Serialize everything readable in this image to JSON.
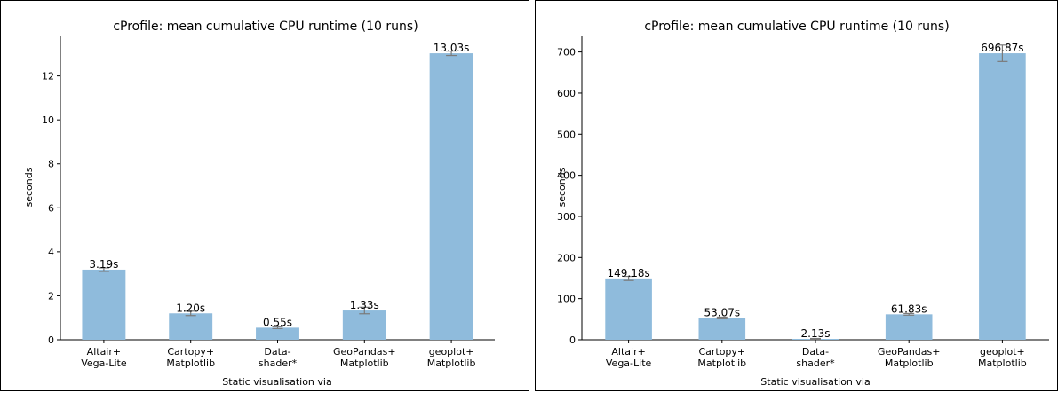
{
  "chart_data": [
    {
      "type": "bar",
      "title": "cProfile: mean cumulative CPU runtime (10 runs)",
      "xlabel": "Static visualisation via",
      "ylabel": "seconds",
      "categories": [
        [
          "Altair+",
          "Vega-Lite"
        ],
        [
          "Cartopy+",
          "Matplotlib"
        ],
        [
          "Data-",
          "shader*"
        ],
        [
          "GeoPandas+",
          "Matplotlib"
        ],
        [
          "geoplot+",
          "Matplotlib"
        ]
      ],
      "values": [
        3.19,
        1.2,
        0.55,
        1.33,
        13.03
      ],
      "errors": [
        0.08,
        0.1,
        0.04,
        0.15,
        0.1
      ],
      "data_labels": [
        "3.19s",
        "1.20s",
        "0.55s",
        "1.33s",
        "13.03s"
      ],
      "yticks": [
        0,
        2,
        4,
        6,
        8,
        10,
        12
      ],
      "ylim": [
        0,
        13.8
      ],
      "bar_color": "#8fbbdc",
      "error_color": "#7a7a7a",
      "grid": false
    },
    {
      "type": "bar",
      "title": "cProfile: mean cumulative CPU runtime (10 runs)",
      "xlabel": "Static visualisation via",
      "ylabel": "seconds",
      "categories": [
        [
          "Altair+",
          "Vega-Lite"
        ],
        [
          "Cartopy+",
          "Matplotlib"
        ],
        [
          "Data-",
          "shader*"
        ],
        [
          "GeoPandas+",
          "Matplotlib"
        ],
        [
          "geoplot+",
          "Matplotlib"
        ]
      ],
      "values": [
        149.18,
        53.07,
        2.13,
        61.83,
        696.87
      ],
      "errors": [
        5,
        2,
        1,
        2,
        20
      ],
      "data_labels": [
        "149.18s",
        "53.07s",
        "2.13s",
        "61.83s",
        "696.87s"
      ],
      "yticks": [
        0,
        100,
        200,
        300,
        400,
        500,
        600,
        700
      ],
      "ylim": [
        0,
        738
      ],
      "bar_color": "#8fbbdc",
      "error_color": "#7a7a7a",
      "grid": false
    }
  ]
}
